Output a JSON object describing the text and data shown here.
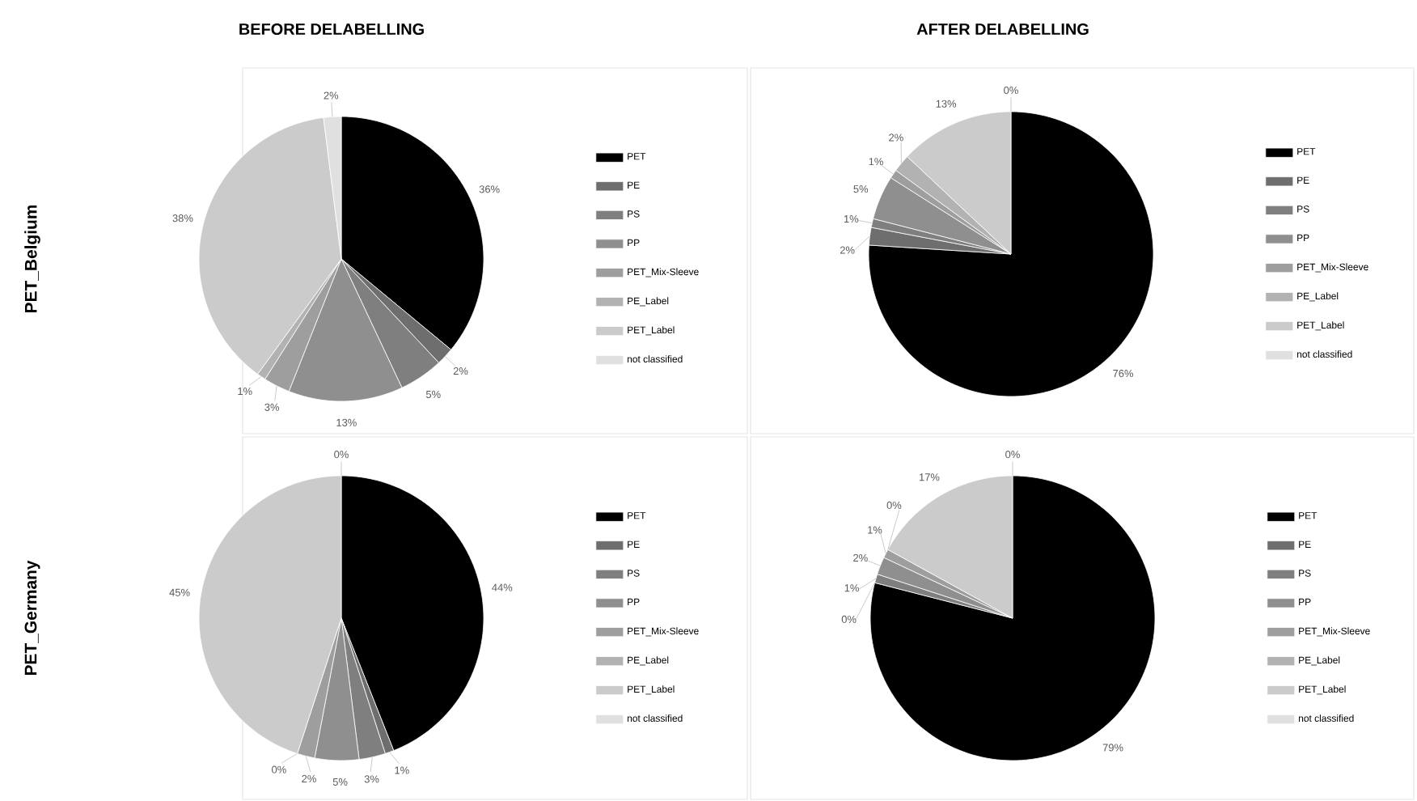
{
  "chart_data": [
    {
      "type": "pie",
      "title": "BEFORE DELABELLING",
      "ylabel": "PET_Belgium",
      "legend": "right",
      "categories": [
        "PET",
        "PE",
        "PS",
        "PP",
        "PET_Mix-Sleeve",
        "PE_Label",
        "PET_Label",
        "not classified"
      ],
      "values": [
        36,
        2,
        5,
        13,
        3,
        1,
        38,
        2
      ],
      "value_labels": [
        "36%",
        "2%",
        "5%",
        "13%",
        "3%",
        "1%",
        "38%",
        "2%"
      ],
      "colors": [
        "#000000",
        "#6e6e6e",
        "#7f7f7f",
        "#8f8f8f",
        "#9e9e9e",
        "#b2b2b2",
        "#cbcbcb",
        "#e0e0e0"
      ]
    },
    {
      "type": "pie",
      "title": "AFTER DELABELLING",
      "legend": "right",
      "categories": [
        "PET",
        "PE",
        "PS",
        "PP",
        "PET_Mix-Sleeve",
        "PE_Label",
        "PET_Label",
        "not classified"
      ],
      "values": [
        76,
        2,
        1,
        5,
        1,
        2,
        13,
        0
      ],
      "value_labels": [
        "76%",
        "2%",
        "1%",
        "5%",
        "1%",
        "2%",
        "13%",
        "0%"
      ],
      "colors": [
        "#000000",
        "#6e6e6e",
        "#7f7f7f",
        "#8f8f8f",
        "#9e9e9e",
        "#b2b2b2",
        "#cbcbcb",
        "#e0e0e0"
      ]
    },
    {
      "type": "pie",
      "ylabel": "PET_Germany",
      "legend": "right",
      "categories": [
        "PET",
        "PE",
        "PS",
        "PP",
        "PET_Mix-Sleeve",
        "PE_Label",
        "PET_Label",
        "not classified"
      ],
      "values": [
        44,
        1,
        3,
        5,
        2,
        0,
        45,
        0
      ],
      "value_labels": [
        "44%",
        "1%",
        "3%",
        "5%",
        "2%",
        "0%",
        "45%",
        "0%"
      ],
      "colors": [
        "#000000",
        "#6e6e6e",
        "#7f7f7f",
        "#8f8f8f",
        "#9e9e9e",
        "#b2b2b2",
        "#cbcbcb",
        "#e0e0e0"
      ]
    },
    {
      "type": "pie",
      "legend": "right",
      "categories": [
        "PET",
        "PE",
        "PS",
        "PP",
        "PET_Mix-Sleeve",
        "PE_Label",
        "PET_Label",
        "not classified"
      ],
      "values": [
        79,
        0,
        1,
        2,
        1,
        0,
        17,
        0
      ],
      "value_labels": [
        "79%",
        "0%",
        "1%",
        "2%",
        "1%",
        "0%",
        "17%",
        "0%"
      ],
      "colors": [
        "#000000",
        "#6e6e6e",
        "#7f7f7f",
        "#8f8f8f",
        "#9e9e9e",
        "#b2b2b2",
        "#cbcbcb",
        "#e0e0e0"
      ]
    }
  ]
}
